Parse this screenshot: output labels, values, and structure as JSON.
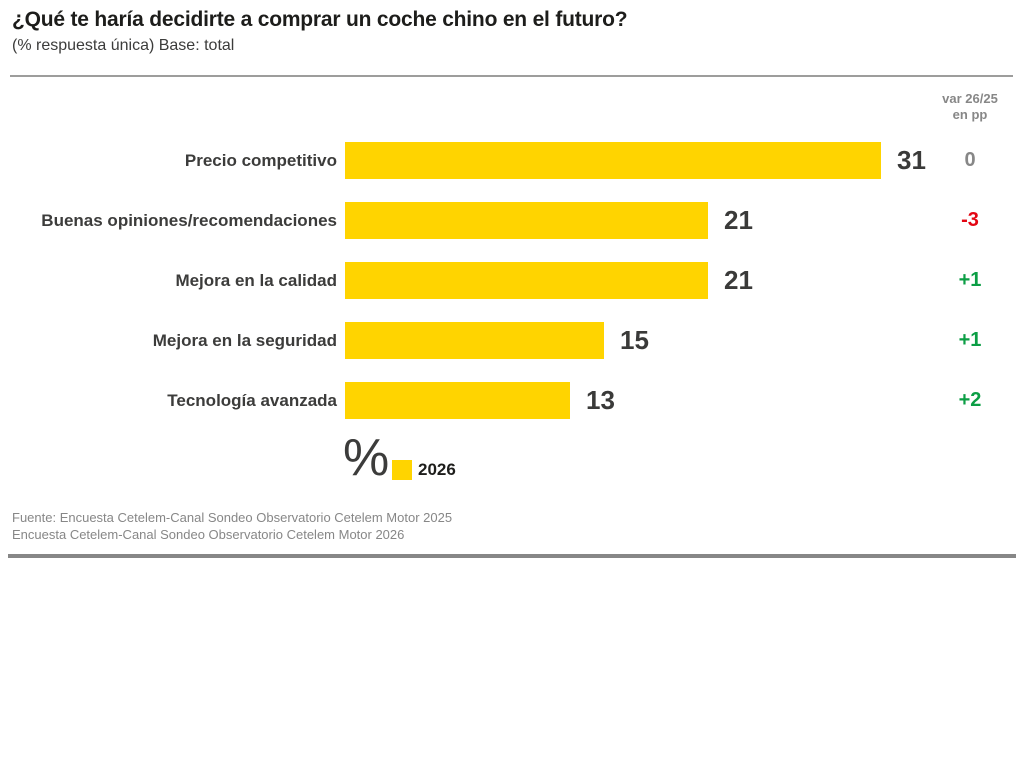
{
  "title": "¿Qué te haría decidirte a comprar un coche chino en el futuro?",
  "subtitle": "(% respuesta única) Base: total",
  "var_header": {
    "line1": "var 26/25",
    "line2": "en pp"
  },
  "legend": {
    "unit_symbol": "%",
    "year_label": "2026"
  },
  "source": {
    "line1": "Fuente: Encuesta Cetelem-Canal Sondeo Observatorio Cetelem Motor 2025",
    "line2": "Encuesta Cetelem-Canal Sondeo Observatorio Cetelem Motor 2026"
  },
  "colors": {
    "bar": "#FFD400",
    "positive": "#0C9E45",
    "negative": "#E30613",
    "neutral": "#878787",
    "value_text": "#3a3a39"
  },
  "chart_data": {
    "type": "bar",
    "orientation": "horizontal",
    "title": "¿Qué te haría decidirte a comprar un coche chino en el futuro?",
    "subtitle": "(% respuesta única) Base: total",
    "unit": "%",
    "categories": [
      "Precio competitivo",
      "Buenas opiniones/recomendaciones",
      "Mejora en la calidad",
      "Mejora en la seguridad",
      "Tecnología avanzada"
    ],
    "series": [
      {
        "name": "2026",
        "values": [
          31,
          21,
          21,
          15,
          13
        ]
      }
    ],
    "values": [
      31,
      21,
      21,
      15,
      13
    ],
    "variations": {
      "header": "var 26/25 en pp",
      "values": [
        "0",
        "-3",
        "+1",
        "+1",
        "+2"
      ],
      "signs": [
        "neutral",
        "negative",
        "positive",
        "positive",
        "positive"
      ]
    },
    "xlim": [
      0,
      31
    ],
    "grid": false,
    "legend_position": "bottom",
    "data_labels": true
  }
}
